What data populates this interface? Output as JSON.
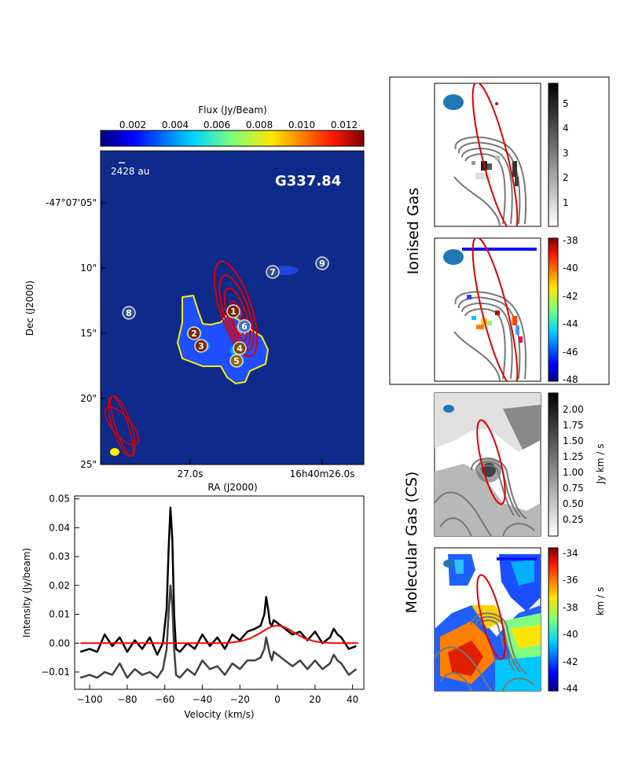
{
  "map": {
    "colorbar_title": "Flux (Jy/Beam)",
    "colorbar_ticks": [
      "0.002",
      "0.004",
      "0.006",
      "0.008",
      "0.010",
      "0.012"
    ],
    "scale_label": "2428 au",
    "source_name": "G337.84",
    "dec_ticks": [
      "-47°07'05\"",
      "10\"",
      "15\"",
      "20\"",
      "25\""
    ],
    "ra_ticks": [
      "27.0s",
      "16h40m26.0s"
    ],
    "xlabel": "RA (J2000)",
    "ylabel": "Dec (J2000)",
    "cores": [
      "1",
      "2",
      "3",
      "4",
      "5",
      "6",
      "7",
      "8",
      "9"
    ]
  },
  "chart_data": [
    {
      "type": "line",
      "xlabel": "Velocity (km/s)",
      "ylabel": "Intensity (Jy/beam)",
      "xlim": [
        -108,
        46
      ],
      "ylim": [
        -0.016,
        0.051
      ],
      "xticks": [
        -100,
        -80,
        -60,
        -40,
        -20,
        0,
        20,
        40
      ],
      "yticks": [
        -0.01,
        0.0,
        0.01,
        0.02,
        0.03,
        0.04,
        0.05
      ],
      "series": [
        {
          "color": "#000000",
          "x": [
            -105,
            -100,
            -96,
            -92,
            -88,
            -84,
            -80,
            -76,
            -72,
            -68,
            -64,
            -61,
            -59,
            -58,
            -57,
            -56,
            -55,
            -54,
            -52,
            -48,
            -44,
            -40,
            -36,
            -32,
            -28,
            -24,
            -20,
            -16,
            -12,
            -9,
            -7,
            -6,
            -5,
            -4,
            -3,
            -2,
            0,
            4,
            8,
            12,
            16,
            20,
            24,
            28,
            30,
            32,
            34,
            38,
            42
          ],
          "y": [
            -0.003,
            -0.002,
            -0.003,
            0.003,
            -0.001,
            0.002,
            -0.003,
            0.001,
            -0.002,
            0.002,
            -0.004,
            0.0,
            0.012,
            0.032,
            0.047,
            0.036,
            0.01,
            -0.002,
            -0.003,
            0.0,
            -0.002,
            0.003,
            -0.001,
            0.002,
            -0.002,
            0.003,
            0.001,
            0.004,
            0.005,
            0.006,
            0.01,
            0.016,
            0.012,
            0.007,
            0.006,
            0.008,
            0.007,
            0.005,
            0.003,
            0.004,
            0.001,
            0.004,
            0.0,
            0.002,
            0.005,
            0.003,
            0.002,
            -0.002,
            -0.001
          ]
        },
        {
          "color": "#404040",
          "x": [
            -105,
            -100,
            -96,
            -92,
            -88,
            -84,
            -80,
            -76,
            -72,
            -68,
            -64,
            -61,
            -59,
            -58,
            -57,
            -56,
            -55,
            -54,
            -52,
            -48,
            -44,
            -40,
            -36,
            -32,
            -28,
            -24,
            -20,
            -16,
            -12,
            -9,
            -7,
            -6,
            -5,
            -4,
            -3,
            -2,
            0,
            4,
            8,
            12,
            16,
            20,
            24,
            28,
            30,
            32,
            34,
            38,
            42
          ],
          "y": [
            -0.012,
            -0.011,
            -0.012,
            -0.01,
            -0.011,
            -0.007,
            -0.012,
            -0.009,
            -0.011,
            -0.01,
            -0.012,
            -0.009,
            -0.002,
            0.01,
            0.02,
            0.013,
            -0.002,
            -0.011,
            -0.012,
            -0.009,
            -0.011,
            -0.006,
            -0.009,
            -0.008,
            -0.011,
            -0.007,
            -0.009,
            -0.006,
            -0.006,
            -0.005,
            -0.002,
            0.002,
            -0.001,
            -0.004,
            -0.006,
            -0.003,
            -0.004,
            -0.006,
            -0.008,
            -0.006,
            -0.009,
            -0.006,
            -0.009,
            -0.007,
            -0.004,
            -0.006,
            -0.007,
            -0.011,
            -0.009
          ]
        },
        {
          "color": "#ff0000",
          "x": [
            -105,
            -30,
            -25,
            -20,
            -15,
            -10,
            -6,
            -3,
            0,
            3,
            6,
            10,
            15,
            20,
            25,
            30,
            43
          ],
          "y": [
            0,
            0,
            0.0002,
            0.0006,
            0.0015,
            0.0032,
            0.0048,
            0.0058,
            0.0061,
            0.0058,
            0.0048,
            0.0032,
            0.0015,
            0.0006,
            0.0002,
            0,
            0
          ]
        }
      ]
    }
  ],
  "ionised": {
    "label": "Ionised Gas",
    "cb1_ticks": [
      "5",
      "4",
      "3",
      "2",
      "1"
    ],
    "cb2_ticks": [
      "-38",
      "-40",
      "-42",
      "-44",
      "-46",
      "-48"
    ]
  },
  "molecular": {
    "label": "Molecular Gas (CS)",
    "cb3_ticks": [
      "2.00",
      "1.75",
      "1.50",
      "1.25",
      "1.00",
      "0.75",
      "0.50",
      "0.25"
    ],
    "cb3_unit": "Jy km / s",
    "cb4_ticks": [
      "-34",
      "-36",
      "-38",
      "-40",
      "-42",
      "-44"
    ],
    "cb4_unit": "km / s"
  }
}
